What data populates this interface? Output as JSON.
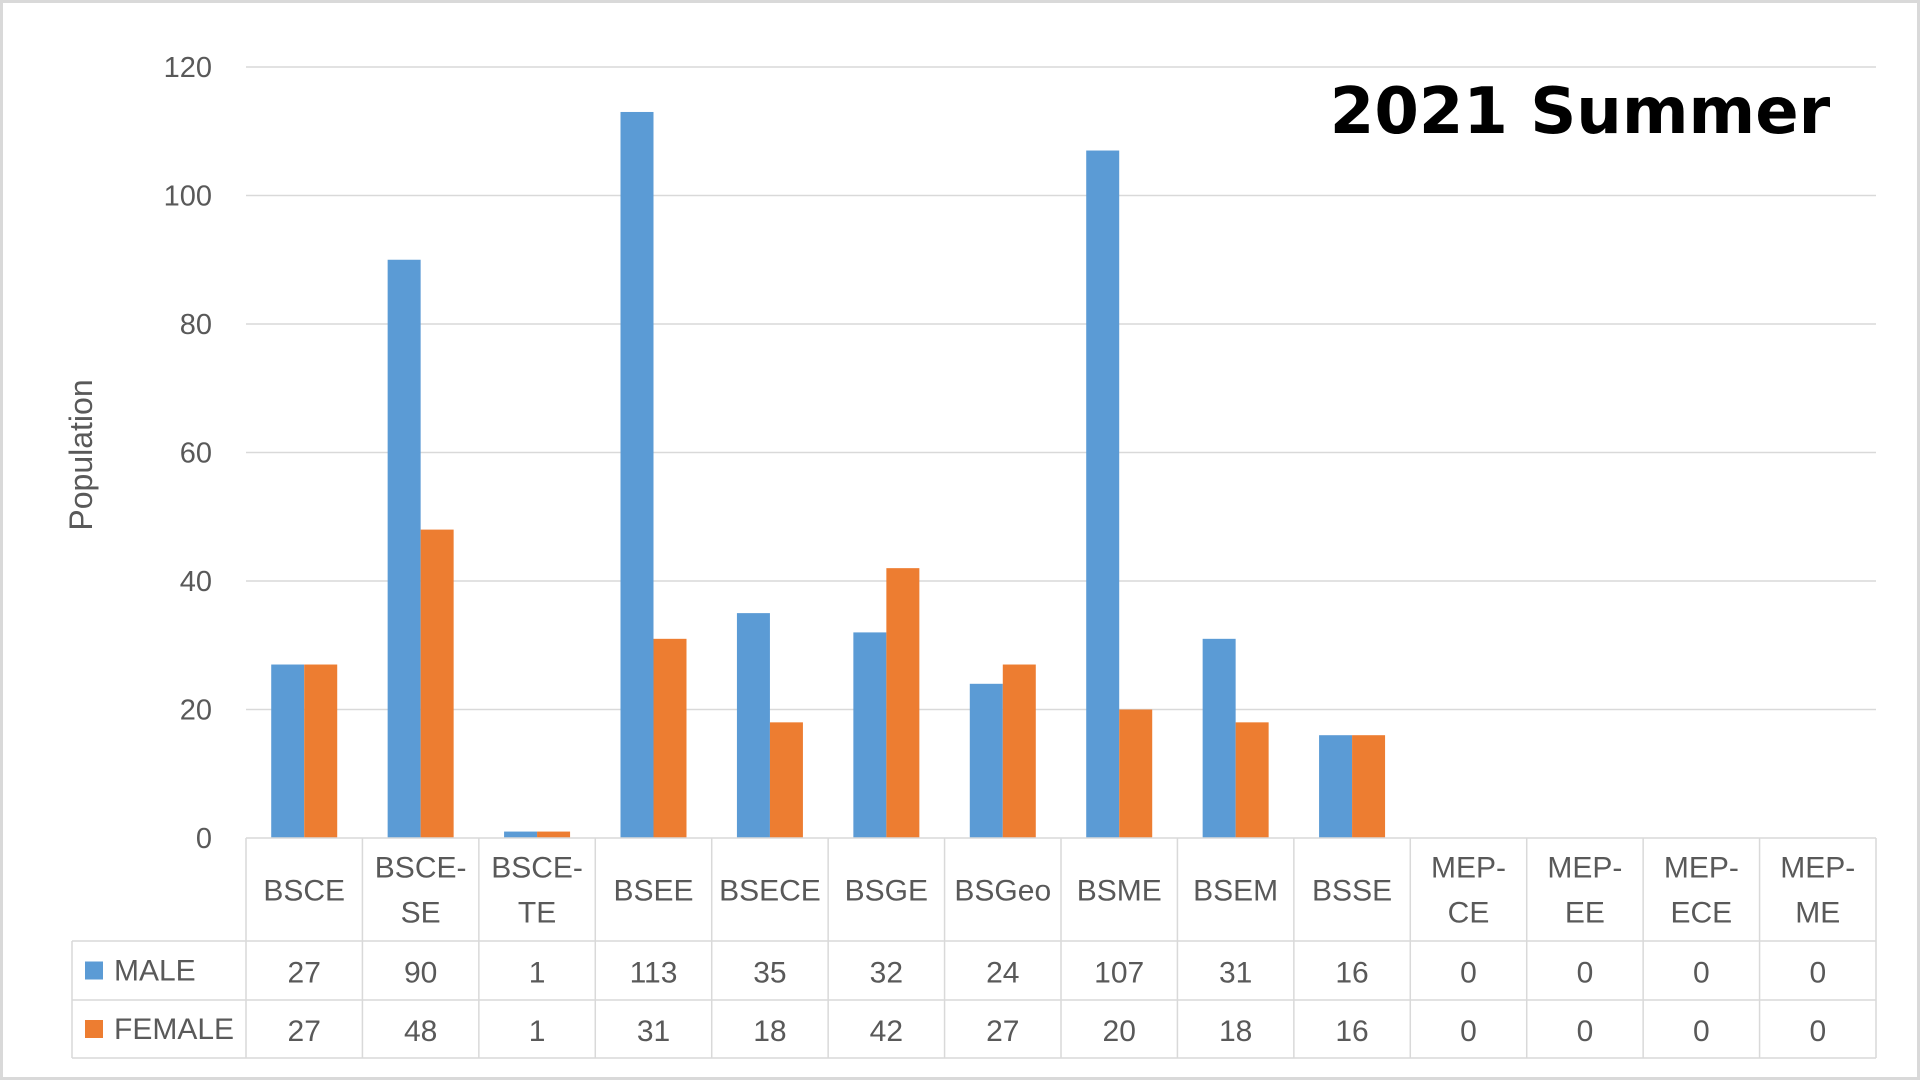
{
  "chart_data": {
    "type": "bar",
    "title": "2021 Summer",
    "ylabel": "Population",
    "ylim": [
      0,
      120
    ],
    "yticks": [
      0,
      20,
      40,
      60,
      80,
      100,
      120
    ],
    "grid": true,
    "legend_placement": "data table (left column)",
    "categories": [
      "BSCE",
      "BSCE-SE",
      "BSCE-TE",
      "BSEE",
      "BSECE",
      "BSGE",
      "BSGeo",
      "BSME",
      "BSEM",
      "BSSE",
      "MEP-CE",
      "MEP-EE",
      "MEP-ECE",
      "MEP-ME"
    ],
    "category_lines": [
      [
        "BSCE"
      ],
      [
        "BSCE-",
        "SE"
      ],
      [
        "BSCE-",
        "TE"
      ],
      [
        "BSEE"
      ],
      [
        "BSECE"
      ],
      [
        "BSGE"
      ],
      [
        "BSGeo"
      ],
      [
        "BSME"
      ],
      [
        "BSEM"
      ],
      [
        "BSSE"
      ],
      [
        "MEP-",
        "CE"
      ],
      [
        "MEP-",
        "EE"
      ],
      [
        "MEP-",
        "ECE"
      ],
      [
        "MEP-",
        "ME"
      ]
    ],
    "series": [
      {
        "name": "MALE",
        "color": "#5b9bd5",
        "values": [
          27,
          90,
          1,
          113,
          35,
          32,
          24,
          107,
          31,
          16,
          0,
          0,
          0,
          0
        ]
      },
      {
        "name": "FEMALE",
        "color": "#ed7d31",
        "values": [
          27,
          48,
          1,
          31,
          18,
          42,
          27,
          20,
          18,
          16,
          0,
          0,
          0,
          0
        ]
      }
    ]
  },
  "colors": {
    "grid": "#d9d9d9",
    "text": "#595959",
    "frame": "#d9d9d9"
  }
}
